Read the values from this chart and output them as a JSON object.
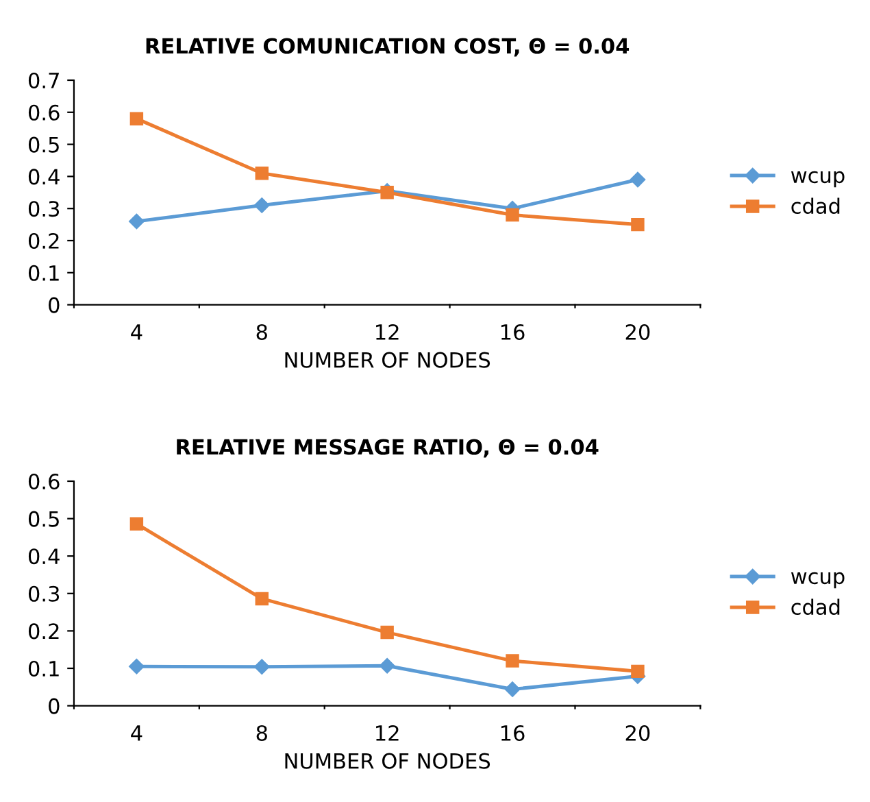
{
  "chart_data": [
    {
      "type": "line",
      "title": "RELATIVE COMUNICATION COST, Θ = 0.04",
      "xlabel": "NUMBER OF NODES",
      "categories": [
        "4",
        "8",
        "12",
        "16",
        "20"
      ],
      "ylim": [
        0,
        0.7
      ],
      "yticks": [
        0,
        0.1,
        0.2,
        0.3,
        0.4,
        0.5,
        0.6,
        0.7
      ],
      "grid": false,
      "legend": "right",
      "series": [
        {
          "name": "wcup",
          "color": "#5b9bd5",
          "marker": "diamond",
          "values": [
            0.26,
            0.31,
            0.355,
            0.3,
            0.39
          ]
        },
        {
          "name": "cdad",
          "color": "#ed7d31",
          "marker": "square",
          "values": [
            0.58,
            0.41,
            0.35,
            0.28,
            0.25
          ]
        }
      ]
    },
    {
      "type": "line",
      "title": "RELATIVE MESSAGE RATIO, Θ = 0.04",
      "xlabel": "NUMBER OF NODES",
      "categories": [
        "4",
        "8",
        "12",
        "16",
        "20"
      ],
      "ylim": [
        0,
        0.6
      ],
      "yticks": [
        0,
        0.1,
        0.2,
        0.3,
        0.4,
        0.5,
        0.6
      ],
      "grid": false,
      "legend": "right",
      "series": [
        {
          "name": "wcup",
          "color": "#5b9bd5",
          "marker": "diamond",
          "values": [
            0.105,
            0.104,
            0.107,
            0.044,
            0.079
          ]
        },
        {
          "name": "cdad",
          "color": "#ed7d31",
          "marker": "square",
          "values": [
            0.486,
            0.286,
            0.196,
            0.12,
            0.092
          ]
        }
      ]
    }
  ]
}
